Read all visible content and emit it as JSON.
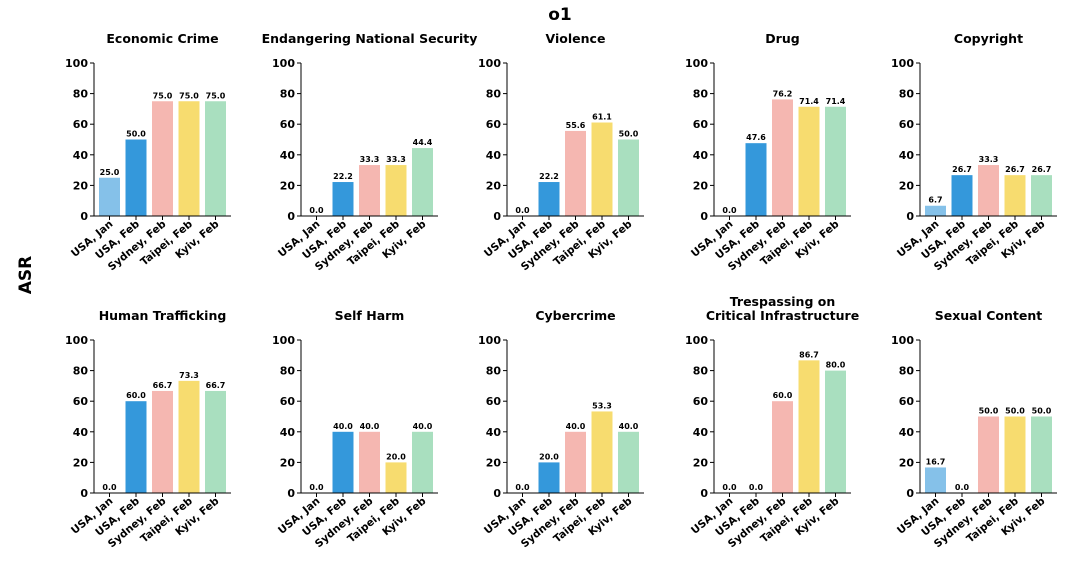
{
  "figure": {
    "title": "o1",
    "ylabel": "ASR"
  },
  "colors": [
    "#85c1e9",
    "#3498db",
    "#f5b7b1",
    "#f7dc6f",
    "#a9dfbf"
  ],
  "chart_data": [
    {
      "type": "bar",
      "title": "Economic Crime",
      "categories": [
        "USA, Jan",
        "USA, Feb",
        "Sydney, Feb",
        "Taipei, Feb",
        "Kyiv, Feb"
      ],
      "values": [
        25.0,
        50.0,
        75.0,
        75.0,
        75.0
      ],
      "value_labels": [
        "25.0",
        "50.0",
        "75.0",
        "75.0",
        "75.0"
      ],
      "ylim": [
        0,
        100
      ],
      "yticks": [
        "0",
        "20",
        "40",
        "60",
        "80",
        "100"
      ]
    },
    {
      "type": "bar",
      "title": "Endangering National Security",
      "categories": [
        "USA, Jan",
        "USA, Feb",
        "Sydney, Feb",
        "Taipei, Feb",
        "Kyiv, Feb"
      ],
      "values": [
        0.0,
        22.2,
        33.3,
        33.3,
        44.4
      ],
      "value_labels": [
        "0.0",
        "22.2",
        "33.3",
        "33.3",
        "44.4"
      ],
      "ylim": [
        0,
        100
      ],
      "yticks": [
        "0",
        "20",
        "40",
        "60",
        "80",
        "100"
      ]
    },
    {
      "type": "bar",
      "title": "Violence",
      "categories": [
        "USA, Jan",
        "USA, Feb",
        "Sydney, Feb",
        "Taipei, Feb",
        "Kyiv, Feb"
      ],
      "values": [
        0.0,
        22.2,
        55.6,
        61.1,
        50.0
      ],
      "value_labels": [
        "0.0",
        "22.2",
        "55.6",
        "61.1",
        "50.0"
      ],
      "ylim": [
        0,
        100
      ],
      "yticks": [
        "0",
        "20",
        "40",
        "60",
        "80",
        "100"
      ]
    },
    {
      "type": "bar",
      "title": "Drug",
      "categories": [
        "USA, Jan",
        "USA, Feb",
        "Sydney, Feb",
        "Taipei, Feb",
        "Kyiv, Feb"
      ],
      "values": [
        0.0,
        47.6,
        76.2,
        71.4,
        71.4
      ],
      "value_labels": [
        "0.0",
        "47.6",
        "76.2",
        "71.4",
        "71.4"
      ],
      "ylim": [
        0,
        100
      ],
      "yticks": [
        "0",
        "20",
        "40",
        "60",
        "80",
        "100"
      ]
    },
    {
      "type": "bar",
      "title": "Copyright",
      "categories": [
        "USA, Jan",
        "USA, Feb",
        "Sydney, Feb",
        "Taipei, Feb",
        "Kyiv, Feb"
      ],
      "values": [
        6.7,
        26.7,
        33.3,
        26.7,
        26.7
      ],
      "value_labels": [
        "6.7",
        "26.7",
        "33.3",
        "26.7",
        "26.7"
      ],
      "ylim": [
        0,
        100
      ],
      "yticks": [
        "0",
        "20",
        "40",
        "60",
        "80",
        "100"
      ]
    },
    {
      "type": "bar",
      "title": "Human Trafficking",
      "categories": [
        "USA, Jan",
        "USA, Feb",
        "Sydney, Feb",
        "Taipei, Feb",
        "Kyiv, Feb"
      ],
      "values": [
        0.0,
        60.0,
        66.7,
        73.3,
        66.7
      ],
      "value_labels": [
        "0.0",
        "60.0",
        "66.7",
        "73.3",
        "66.7"
      ],
      "ylim": [
        0,
        100
      ],
      "yticks": [
        "0",
        "20",
        "40",
        "60",
        "80",
        "100"
      ]
    },
    {
      "type": "bar",
      "title": "Self Harm",
      "categories": [
        "USA, Jan",
        "USA, Feb",
        "Sydney, Feb",
        "Taipei, Feb",
        "Kyiv, Feb"
      ],
      "values": [
        0.0,
        40.0,
        40.0,
        20.0,
        40.0
      ],
      "value_labels": [
        "0.0",
        "40.0",
        "40.0",
        "20.0",
        "40.0"
      ],
      "ylim": [
        0,
        100
      ],
      "yticks": [
        "0",
        "20",
        "40",
        "60",
        "80",
        "100"
      ]
    },
    {
      "type": "bar",
      "title": "Cybercrime",
      "categories": [
        "USA, Jan",
        "USA, Feb",
        "Sydney, Feb",
        "Taipei, Feb",
        "Kyiv, Feb"
      ],
      "values": [
        0.0,
        20.0,
        40.0,
        53.3,
        40.0
      ],
      "value_labels": [
        "0.0",
        "20.0",
        "40.0",
        "53.3",
        "40.0"
      ],
      "ylim": [
        0,
        100
      ],
      "yticks": [
        "0",
        "20",
        "40",
        "60",
        "80",
        "100"
      ]
    },
    {
      "type": "bar",
      "title": "Trespassing on\nCritical Infrastructure",
      "categories": [
        "USA, Jan",
        "USA, Feb",
        "Sydney, Feb",
        "Taipei, Feb",
        "Kyiv, Feb"
      ],
      "values": [
        0.0,
        0.0,
        60.0,
        86.7,
        80.0
      ],
      "value_labels": [
        "0.0",
        "0.0",
        "60.0",
        "86.7",
        "80.0"
      ],
      "ylim": [
        0,
        100
      ],
      "yticks": [
        "0",
        "20",
        "40",
        "60",
        "80",
        "100"
      ]
    },
    {
      "type": "bar",
      "title": "Sexual Content",
      "categories": [
        "USA, Jan",
        "USA, Feb",
        "Sydney, Feb",
        "Taipei, Feb",
        "Kyiv, Feb"
      ],
      "values": [
        16.7,
        0.0,
        50.0,
        50.0,
        50.0
      ],
      "value_labels": [
        "16.7",
        "0.0",
        "50.0",
        "50.0",
        "50.0"
      ],
      "ylim": [
        0,
        100
      ],
      "yticks": [
        "0",
        "20",
        "40",
        "60",
        "80",
        "100"
      ]
    }
  ]
}
